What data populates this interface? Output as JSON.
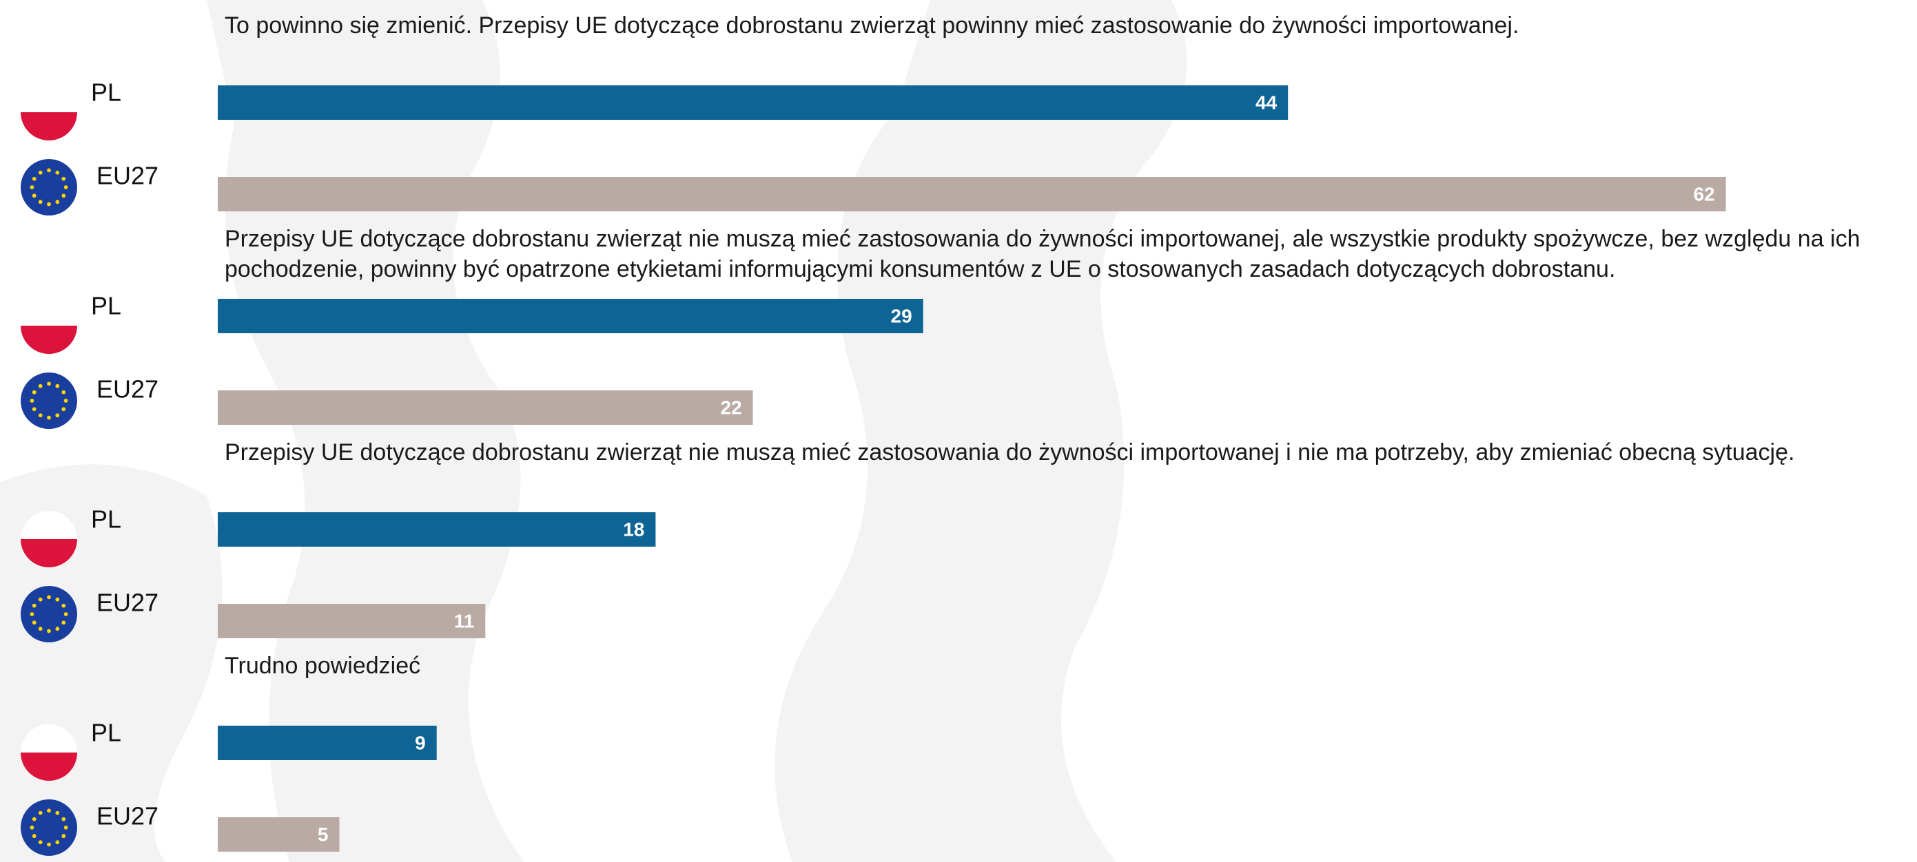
{
  "chart_data": {
    "type": "bar",
    "categories": [
      "To powinno się zmienić. Przepisy UE dotyczące dobrostanu zwierząt powinny mieć zastosowanie do żywności importowanej.",
      "Przepisy UE dotyczące dobrostanu zwierząt nie muszą mieć zastosowania do żywności importowanej, ale wszystkie produkty spożywcze, bez względu na ich pochodzenie, powinny być opatrzone etykietami informującymi konsumentów z UE o stosowanych zasadach dotyczących dobrostanu.",
      "Przepisy UE dotyczące dobrostanu zwierząt nie muszą mieć zastosowania do żywności importowanej i nie ma potrzeby, aby zmieniać obecną sytuację.",
      "Trudno powiedzieć"
    ],
    "series": [
      {
        "name": "PL",
        "color": "#0e6494",
        "values": [
          44,
          29,
          18,
          9
        ]
      },
      {
        "name": "EU27",
        "color": "#b9aaa3",
        "values": [
          62,
          22,
          11,
          5
        ]
      }
    ]
  }
}
